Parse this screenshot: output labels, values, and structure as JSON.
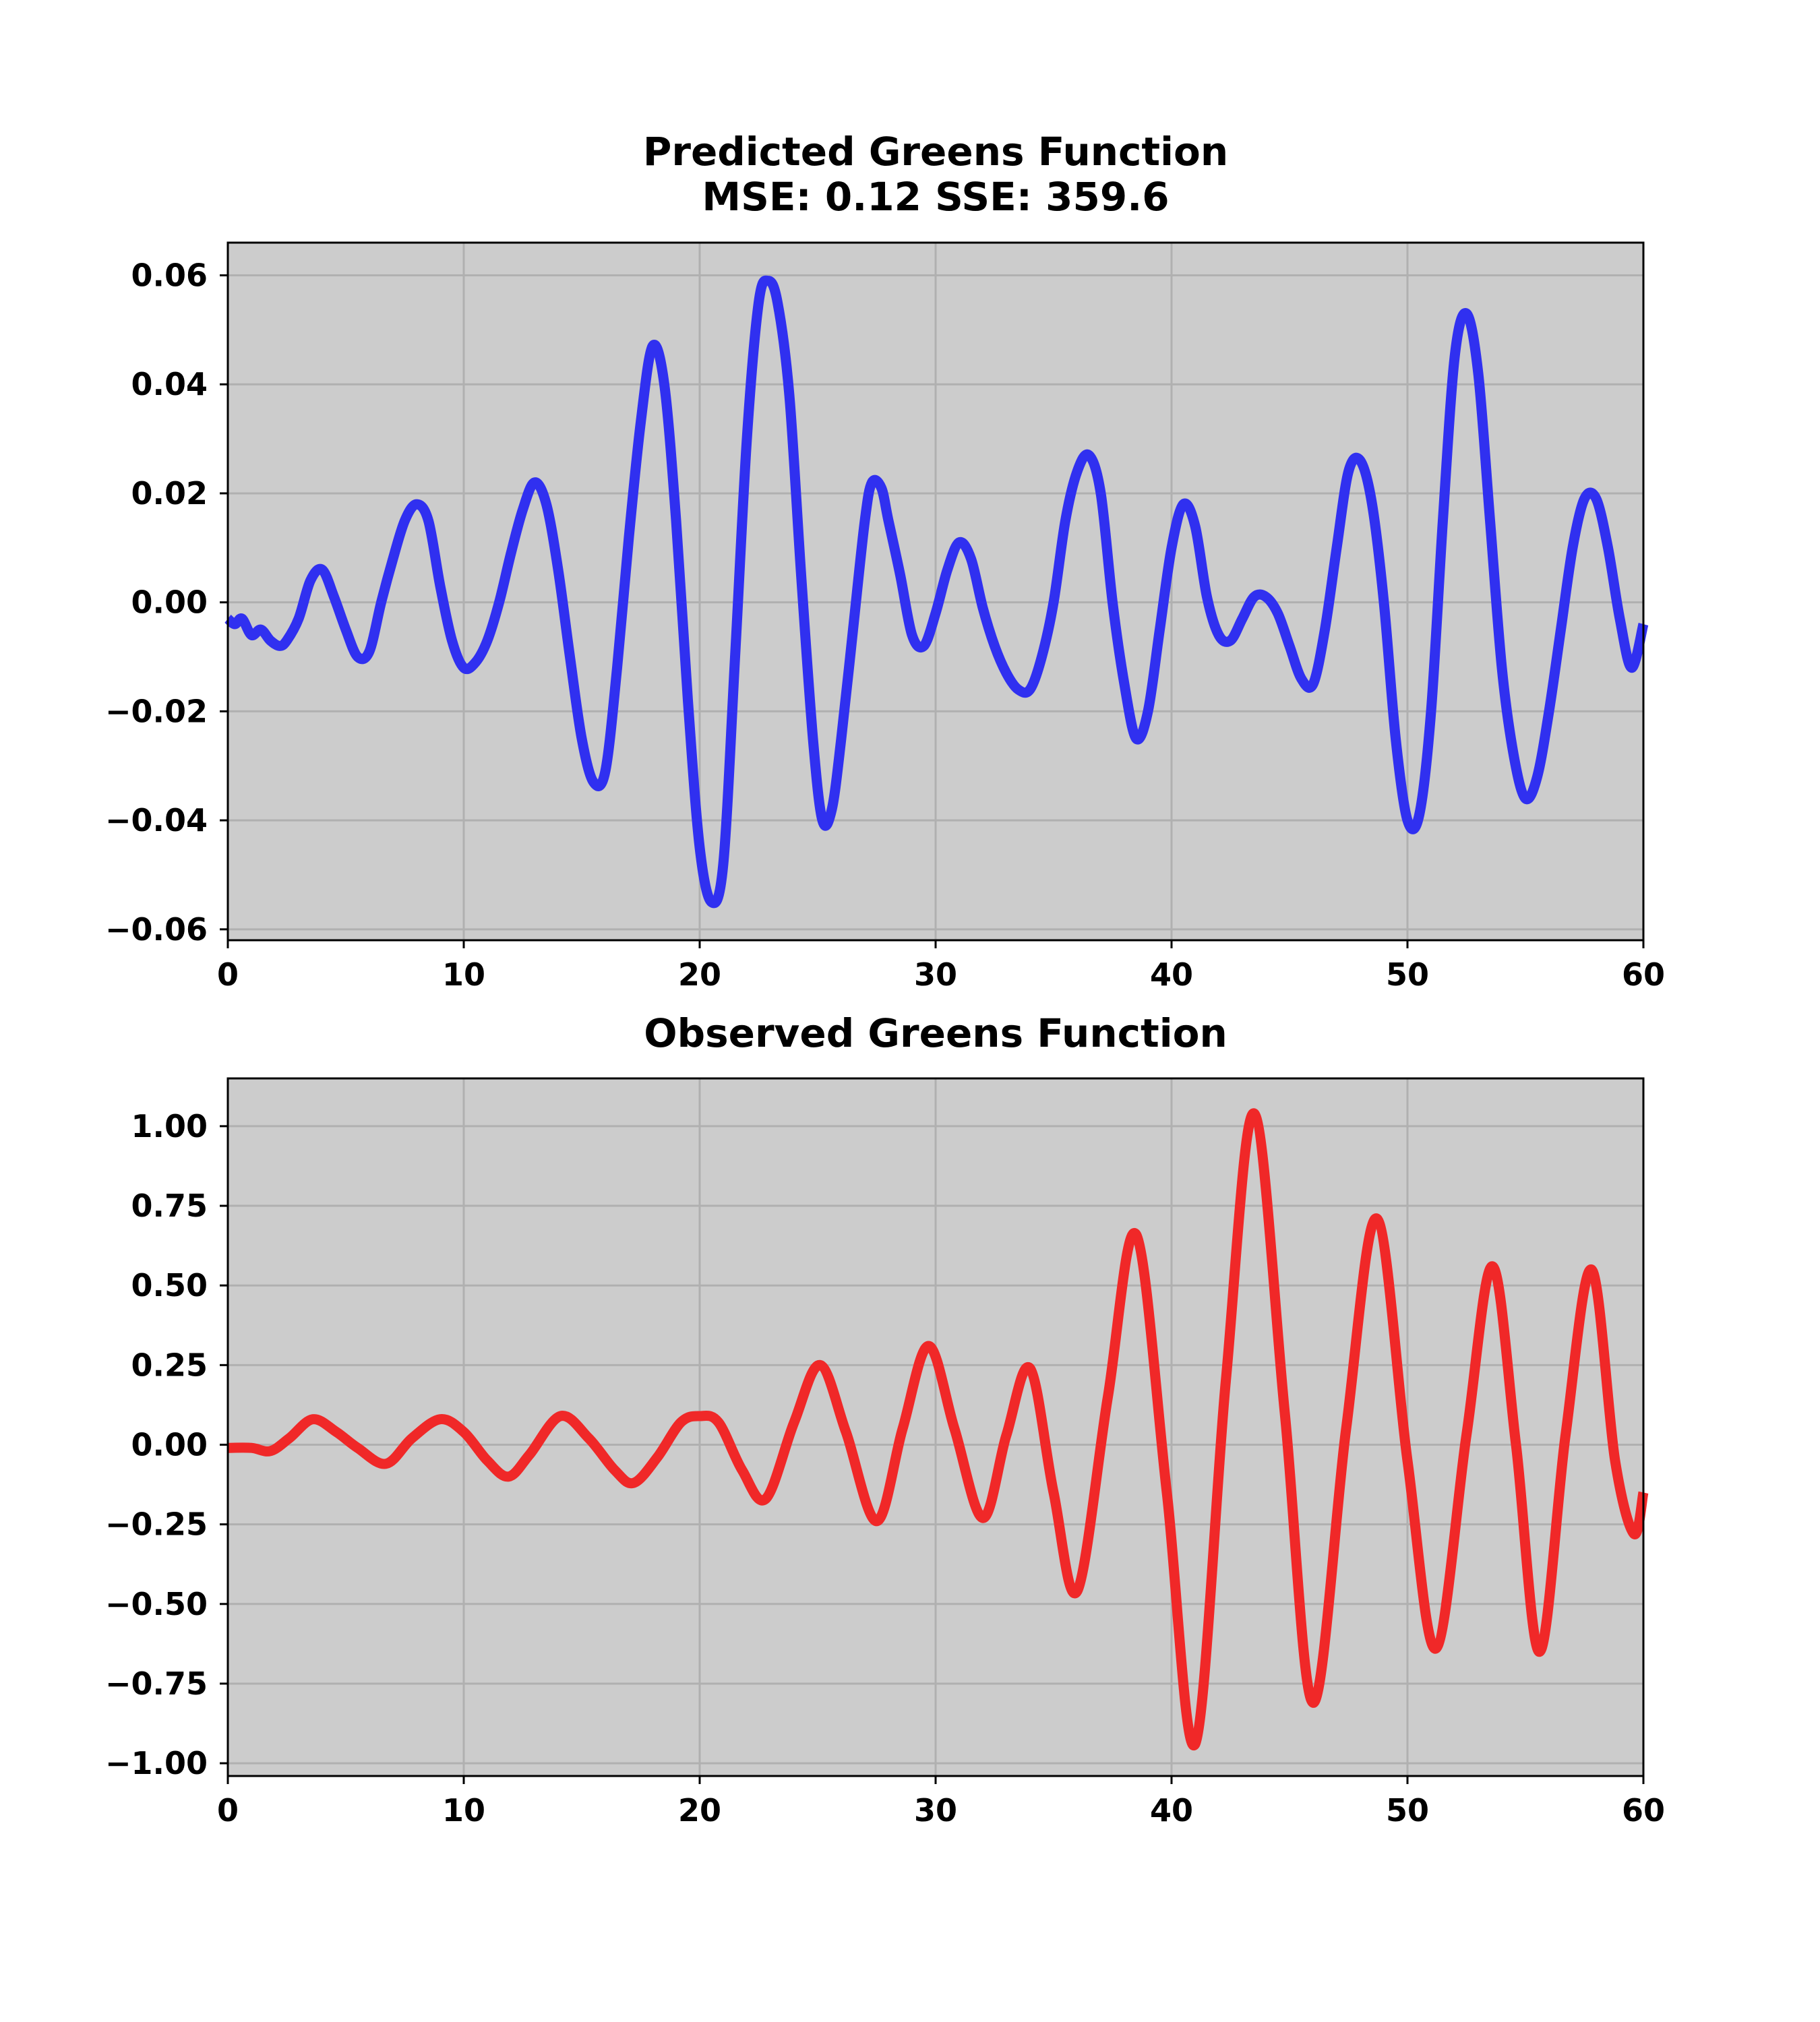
{
  "chart_data": [
    {
      "type": "line",
      "title_lines": [
        "Predicted Greens Function",
        "MSE: 0.12 SSE: 359.6"
      ],
      "xlabel": "",
      "ylabel": "",
      "xlim": [
        0,
        60
      ],
      "ylim": [
        -0.062,
        0.066
      ],
      "xticks": [
        0,
        10,
        20,
        30,
        40,
        50,
        60
      ],
      "xtick_labels": [
        "0",
        "10",
        "20",
        "30",
        "40",
        "50",
        "60"
      ],
      "yticks": [
        0.06,
        0.04,
        0.02,
        0.0,
        -0.02,
        -0.04,
        -0.06
      ],
      "ytick_labels": [
        "0.06",
        "0.04",
        "0.02",
        "0.00",
        "−0.02",
        "−0.04",
        "−0.06"
      ],
      "grid": true,
      "background": "#cccccc",
      "series": [
        {
          "color": "#3030f0",
          "points": [
            [
              0.0,
              -0.003
            ],
            [
              0.3,
              -0.004
            ],
            [
              0.6,
              -0.003
            ],
            [
              1.0,
              -0.006
            ],
            [
              1.4,
              -0.005
            ],
            [
              1.8,
              -0.007
            ],
            [
              2.2,
              -0.008
            ],
            [
              2.5,
              -0.007
            ],
            [
              3.0,
              -0.003
            ],
            [
              3.5,
              0.004
            ],
            [
              4.0,
              0.006
            ],
            [
              4.5,
              0.001
            ],
            [
              5.0,
              -0.005
            ],
            [
              5.5,
              -0.01
            ],
            [
              6.0,
              -0.009
            ],
            [
              6.5,
              0.0
            ],
            [
              7.0,
              0.008
            ],
            [
              7.5,
              0.015
            ],
            [
              8.0,
              0.018
            ],
            [
              8.5,
              0.015
            ],
            [
              9.0,
              0.003
            ],
            [
              9.5,
              -0.007
            ],
            [
              10.0,
              -0.012
            ],
            [
              10.5,
              -0.011
            ],
            [
              11.0,
              -0.007
            ],
            [
              11.5,
              0.0
            ],
            [
              12.0,
              0.009
            ],
            [
              12.5,
              0.017
            ],
            [
              13.0,
              0.022
            ],
            [
              13.5,
              0.018
            ],
            [
              14.0,
              0.006
            ],
            [
              14.5,
              -0.01
            ],
            [
              15.0,
              -0.025
            ],
            [
              15.5,
              -0.033
            ],
            [
              16.0,
              -0.031
            ],
            [
              16.5,
              -0.012
            ],
            [
              17.0,
              0.012
            ],
            [
              17.5,
              0.033
            ],
            [
              18.0,
              0.047
            ],
            [
              18.5,
              0.04
            ],
            [
              19.0,
              0.015
            ],
            [
              19.5,
              -0.018
            ],
            [
              20.0,
              -0.045
            ],
            [
              20.5,
              -0.055
            ],
            [
              21.0,
              -0.048
            ],
            [
              21.5,
              -0.01
            ],
            [
              22.0,
              0.03
            ],
            [
              22.5,
              0.055
            ],
            [
              22.9,
              0.059
            ],
            [
              23.3,
              0.055
            ],
            [
              23.8,
              0.038
            ],
            [
              24.3,
              0.005
            ],
            [
              24.8,
              -0.025
            ],
            [
              25.2,
              -0.04
            ],
            [
              25.6,
              -0.038
            ],
            [
              26.0,
              -0.025
            ],
            [
              26.5,
              -0.005
            ],
            [
              27.0,
              0.015
            ],
            [
              27.3,
              0.022
            ],
            [
              27.7,
              0.021
            ],
            [
              28.0,
              0.015
            ],
            [
              28.5,
              0.005
            ],
            [
              29.0,
              -0.006
            ],
            [
              29.5,
              -0.008
            ],
            [
              30.0,
              -0.002
            ],
            [
              30.5,
              0.006
            ],
            [
              31.0,
              0.011
            ],
            [
              31.5,
              0.008
            ],
            [
              32.0,
              -0.001
            ],
            [
              32.5,
              -0.008
            ],
            [
              33.0,
              -0.013
            ],
            [
              33.5,
              -0.016
            ],
            [
              34.0,
              -0.016
            ],
            [
              34.5,
              -0.01
            ],
            [
              35.0,
              0.0
            ],
            [
              35.5,
              0.015
            ],
            [
              36.0,
              0.024
            ],
            [
              36.5,
              0.027
            ],
            [
              37.0,
              0.02
            ],
            [
              37.5,
              0.0
            ],
            [
              38.0,
              -0.015
            ],
            [
              38.5,
              -0.025
            ],
            [
              39.0,
              -0.02
            ],
            [
              39.5,
              -0.005
            ],
            [
              40.0,
              0.01
            ],
            [
              40.5,
              0.018
            ],
            [
              41.0,
              0.014
            ],
            [
              41.5,
              0.001
            ],
            [
              42.0,
              -0.006
            ],
            [
              42.5,
              -0.007
            ],
            [
              43.0,
              -0.003
            ],
            [
              43.5,
              0.001
            ],
            [
              44.0,
              0.001
            ],
            [
              44.5,
              -0.002
            ],
            [
              45.0,
              -0.008
            ],
            [
              45.5,
              -0.014
            ],
            [
              46.0,
              -0.015
            ],
            [
              46.5,
              -0.005
            ],
            [
              47.0,
              0.01
            ],
            [
              47.5,
              0.024
            ],
            [
              48.0,
              0.026
            ],
            [
              48.5,
              0.018
            ],
            [
              49.0,
              0.0
            ],
            [
              49.5,
              -0.025
            ],
            [
              50.0,
              -0.04
            ],
            [
              50.5,
              -0.039
            ],
            [
              51.0,
              -0.02
            ],
            [
              51.5,
              0.015
            ],
            [
              52.0,
              0.045
            ],
            [
              52.5,
              0.053
            ],
            [
              53.0,
              0.042
            ],
            [
              53.5,
              0.015
            ],
            [
              54.0,
              -0.012
            ],
            [
              54.5,
              -0.028
            ],
            [
              55.0,
              -0.036
            ],
            [
              55.5,
              -0.032
            ],
            [
              56.0,
              -0.02
            ],
            [
              56.5,
              -0.005
            ],
            [
              57.0,
              0.01
            ],
            [
              57.5,
              0.019
            ],
            [
              58.0,
              0.019
            ],
            [
              58.5,
              0.01
            ],
            [
              59.0,
              -0.003
            ],
            [
              59.5,
              -0.012
            ],
            [
              60.0,
              -0.004
            ]
          ]
        }
      ]
    },
    {
      "type": "line",
      "title_lines": [
        "Observed Greens Function"
      ],
      "xlabel": "",
      "ylabel": "",
      "xlim": [
        0,
        60
      ],
      "ylim": [
        -1.04,
        1.15
      ],
      "xticks": [
        0,
        10,
        20,
        30,
        40,
        50,
        60
      ],
      "xtick_labels": [
        "0",
        "10",
        "20",
        "30",
        "40",
        "50",
        "60"
      ],
      "yticks": [
        1.0,
        0.75,
        0.5,
        0.25,
        0.0,
        -0.25,
        -0.5,
        -0.75,
        -1.0
      ],
      "ytick_labels": [
        "1.00",
        "0.75",
        "0.50",
        "0.25",
        "0.00",
        "−0.25",
        "−0.50",
        "−0.75",
        "−1.00"
      ],
      "grid": true,
      "background": "#cccccc",
      "series": [
        {
          "color": "#f02828",
          "points": [
            [
              0.0,
              -0.01
            ],
            [
              1.0,
              -0.01
            ],
            [
              1.8,
              -0.02
            ],
            [
              2.6,
              0.02
            ],
            [
              3.6,
              0.08
            ],
            [
              4.6,
              0.04
            ],
            [
              5.5,
              -0.01
            ],
            [
              6.7,
              -0.06
            ],
            [
              7.8,
              0.02
            ],
            [
              9.0,
              0.08
            ],
            [
              10.0,
              0.04
            ],
            [
              11.0,
              -0.05
            ],
            [
              11.9,
              -0.1
            ],
            [
              12.8,
              -0.03
            ],
            [
              14.1,
              0.09
            ],
            [
              15.3,
              0.02
            ],
            [
              16.4,
              -0.08
            ],
            [
              17.2,
              -0.12
            ],
            [
              18.2,
              -0.04
            ],
            [
              19.2,
              0.07
            ],
            [
              20.0,
              0.09
            ],
            [
              20.8,
              0.07
            ],
            [
              21.8,
              -0.08
            ],
            [
              22.8,
              -0.17
            ],
            [
              24.0,
              0.07
            ],
            [
              25.1,
              0.25
            ],
            [
              26.2,
              0.04
            ],
            [
              27.5,
              -0.24
            ],
            [
              28.6,
              0.05
            ],
            [
              29.7,
              0.31
            ],
            [
              30.8,
              0.05
            ],
            [
              32.0,
              -0.23
            ],
            [
              33.0,
              0.03
            ],
            [
              34.0,
              0.24
            ],
            [
              35.0,
              -0.15
            ],
            [
              36.0,
              -0.46
            ],
            [
              37.3,
              0.15
            ],
            [
              38.5,
              0.66
            ],
            [
              39.8,
              -0.15
            ],
            [
              41.0,
              -0.94
            ],
            [
              42.3,
              0.2
            ],
            [
              43.5,
              1.04
            ],
            [
              44.8,
              0.1
            ],
            [
              46.0,
              -0.81
            ],
            [
              47.4,
              0.05
            ],
            [
              48.7,
              0.71
            ],
            [
              50.0,
              -0.05
            ],
            [
              51.2,
              -0.64
            ],
            [
              52.5,
              0.03
            ],
            [
              53.6,
              0.56
            ],
            [
              54.6,
              0.0
            ],
            [
              55.6,
              -0.65
            ],
            [
              56.7,
              0.03
            ],
            [
              57.8,
              0.55
            ],
            [
              58.8,
              -0.05
            ],
            [
              59.6,
              -0.28
            ],
            [
              60.0,
              -0.15
            ]
          ]
        }
      ]
    }
  ]
}
